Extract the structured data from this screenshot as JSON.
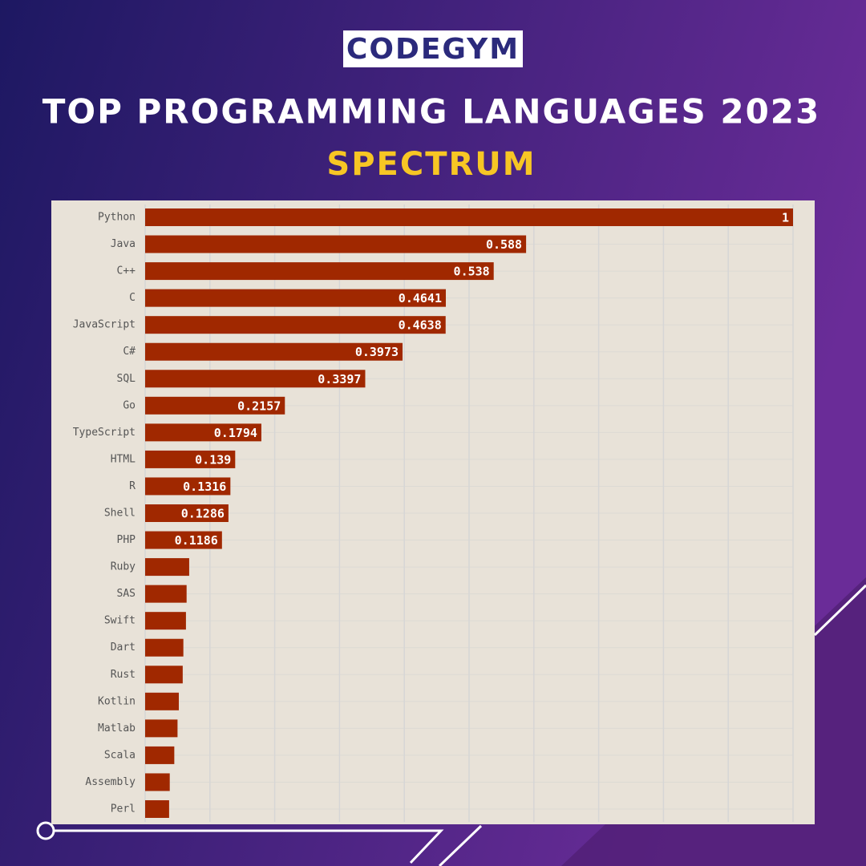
{
  "brand": "CODEGYM",
  "chart_data": {
    "type": "bar",
    "orientation": "horizontal",
    "title": "TOP PROGRAMMING LANGUAGES 2023",
    "subtitle": "SPECTRUM",
    "categories": [
      "Python",
      "Java",
      "C++",
      "C",
      "JavaScript",
      "C#",
      "SQL",
      "Go",
      "TypeScript",
      "HTML",
      "R",
      "Shell",
      "PHP",
      "Ruby",
      "SAS",
      "Swift",
      "Dart",
      "Rust",
      "Kotlin",
      "Matlab",
      "Scala",
      "Assembly",
      "Perl"
    ],
    "values": [
      1,
      0.588,
      0.538,
      0.4641,
      0.4638,
      0.3973,
      0.3397,
      0.2157,
      0.1794,
      0.139,
      0.1316,
      0.1286,
      0.1186,
      0.068,
      0.064,
      0.063,
      0.059,
      0.058,
      0.052,
      0.05,
      0.045,
      0.038,
      0.037
    ],
    "value_labels": [
      "1",
      "0.588",
      "0.538",
      "0.4641",
      "0.4638",
      "0.3973",
      "0.3397",
      "0.2157",
      "0.1794",
      "0.139",
      "0.1316",
      "0.1286",
      "0.1186",
      null,
      null,
      null,
      null,
      null,
      null,
      null,
      null,
      null,
      null
    ],
    "color": "#a02800",
    "xlim": [
      0,
      1
    ],
    "xticks": [
      0,
      0.1,
      0.2,
      0.3,
      0.4,
      0.5,
      0.6,
      0.7,
      0.8,
      0.9,
      1
    ],
    "grid": true
  }
}
